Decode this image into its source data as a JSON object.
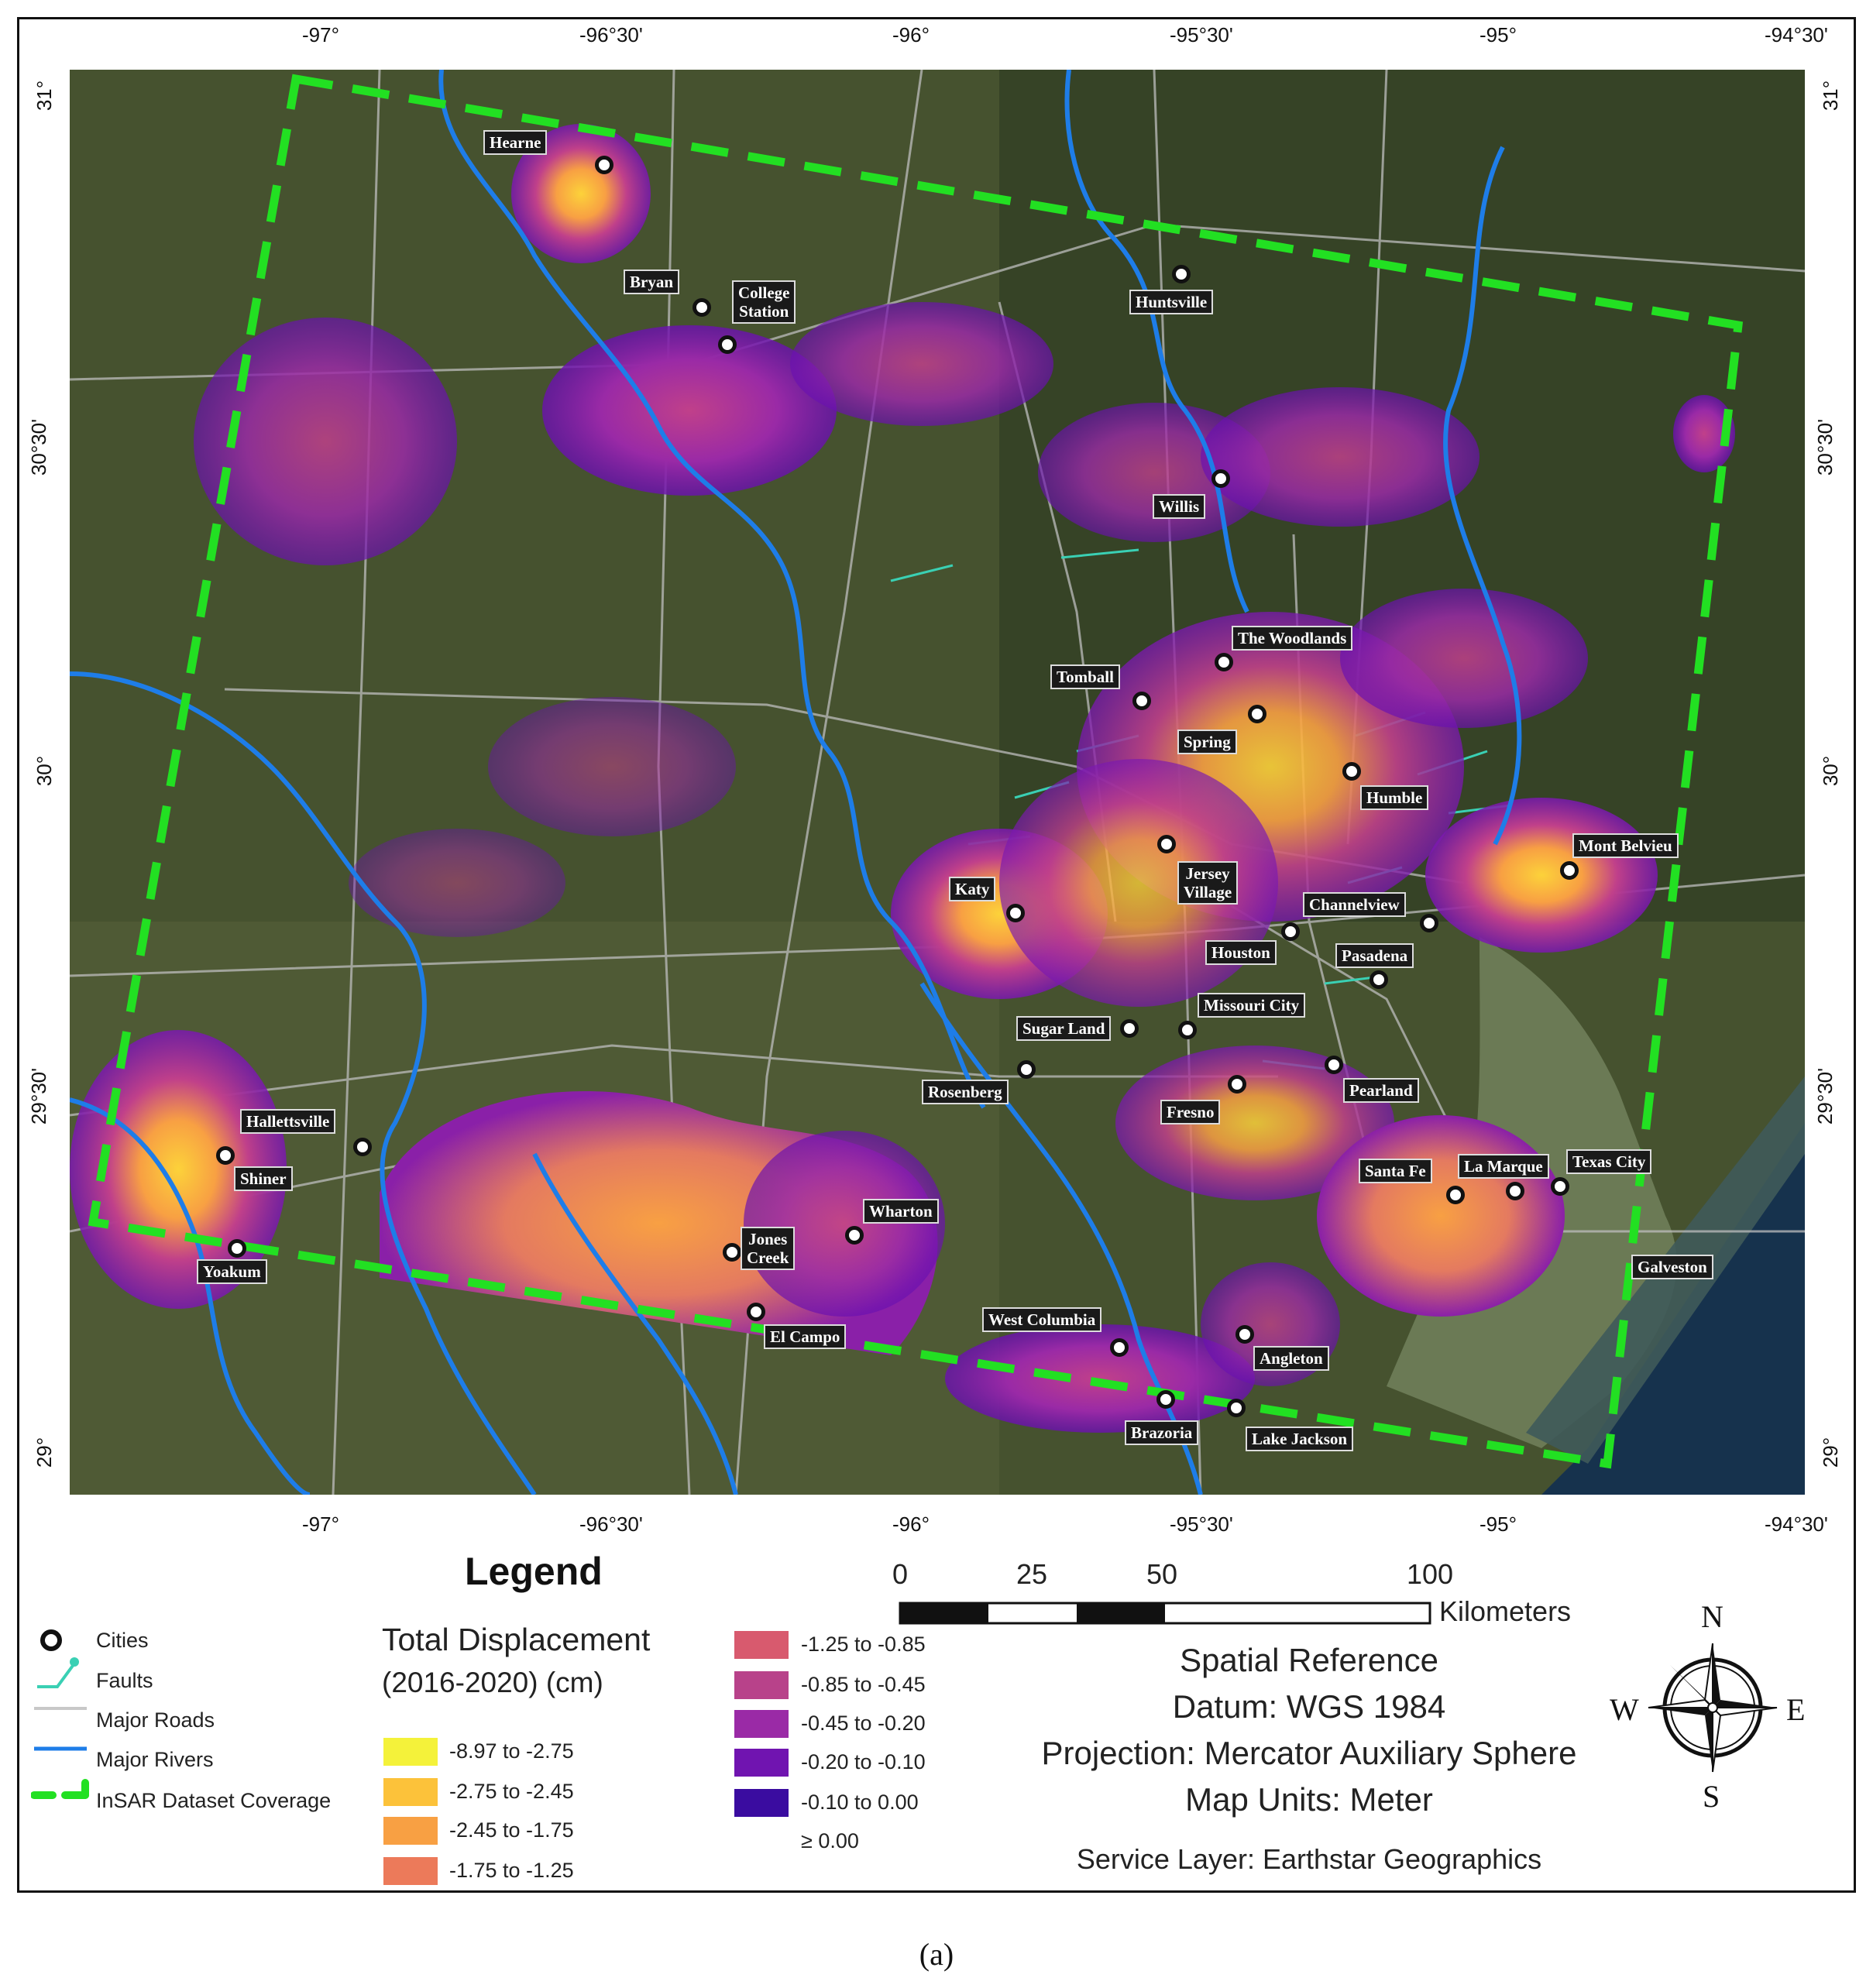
{
  "map": {
    "top_ticks": [
      "-97°",
      "-96°30'",
      "-96°",
      "-95°30'",
      "-95°",
      "-94°30'"
    ],
    "bottom_ticks": [
      "-97°",
      "-96°30'",
      "-96°",
      "-95°30'",
      "-95°",
      "-94°30'"
    ],
    "left_ticks": [
      "31°",
      "30°30'",
      "30°",
      "29°30'",
      "29°"
    ],
    "right_ticks": [
      "31°",
      "30°30'",
      "30°",
      "29°30'",
      "29°"
    ],
    "cities": [
      {
        "name": "Hearne"
      },
      {
        "name": "Bryan"
      },
      {
        "name": "College\nStation"
      },
      {
        "name": "Huntsville"
      },
      {
        "name": "Willis"
      },
      {
        "name": "The Woodlands"
      },
      {
        "name": "Tomball"
      },
      {
        "name": "Spring"
      },
      {
        "name": "Humble"
      },
      {
        "name": "Mont Belvieu"
      },
      {
        "name": "Katy"
      },
      {
        "name": "Jersey\nVillage"
      },
      {
        "name": "Channelview"
      },
      {
        "name": "Houston"
      },
      {
        "name": "Pasadena"
      },
      {
        "name": "Sugar Land"
      },
      {
        "name": "Missouri City"
      },
      {
        "name": "Rosenberg"
      },
      {
        "name": "Fresno"
      },
      {
        "name": "Pearland"
      },
      {
        "name": "Hallettsville"
      },
      {
        "name": "Shiner"
      },
      {
        "name": "Yoakum"
      },
      {
        "name": "Jones\nCreek"
      },
      {
        "name": "Wharton"
      },
      {
        "name": "El Campo"
      },
      {
        "name": "West Columbia"
      },
      {
        "name": "Angleton"
      },
      {
        "name": "Brazoria"
      },
      {
        "name": "Lake Jackson"
      },
      {
        "name": "Santa Fe"
      },
      {
        "name": "La Marque"
      },
      {
        "name": "Texas City"
      },
      {
        "name": "Galveston"
      }
    ]
  },
  "legend": {
    "title": "Legend",
    "items": {
      "cities": "Cities",
      "faults": "Faults",
      "roads": "Major Roads",
      "rivers": "Major Rivers",
      "coverage": "InSAR Dataset Coverage"
    },
    "displacement_title_1": "Total Displacement",
    "displacement_title_2": "(2016-2020) (cm)",
    "classes": [
      {
        "label": "-8.97 to -2.75",
        "color": "#f4f23a"
      },
      {
        "label": "-2.75 to -2.45",
        "color": "#fcc23a"
      },
      {
        "label": "-2.45 to -1.75",
        "color": "#f8a043"
      },
      {
        "label": "-1.75 to -1.25",
        "color": "#ec7a5a"
      },
      {
        "label": "-1.25 to -0.85",
        "color": "#d85a6e"
      },
      {
        "label": "-0.85 to -0.45",
        "color": "#b8428a"
      },
      {
        "label": "-0.45 to -0.20",
        "color": "#9a2aa6"
      },
      {
        "label": "-0.20 to -0.10",
        "color": "#7014b0"
      },
      {
        "label": "-0.10 to 0.00",
        "color": "#3a0ca0"
      },
      {
        "label": "≥ 0.00",
        "color": ""
      }
    ]
  },
  "scale": {
    "labels": [
      "0",
      "25",
      "50",
      "100"
    ],
    "unit": "Kilometers"
  },
  "spatial_reference": {
    "title": "Spatial Reference",
    "datum": "Datum: WGS 1984",
    "projection": "Projection: Mercator Auxiliary Sphere",
    "units": "Map Units: Meter",
    "service": "Service Layer: Earthstar Geographics"
  },
  "compass": {
    "n": "N",
    "s": "S",
    "e": "E",
    "w": "W"
  },
  "caption": "(a)",
  "colors": {
    "coverage": "#22e022",
    "rivers": "#1e7de8",
    "roads": "#bdbdbd",
    "faults": "#3ad0b4"
  }
}
